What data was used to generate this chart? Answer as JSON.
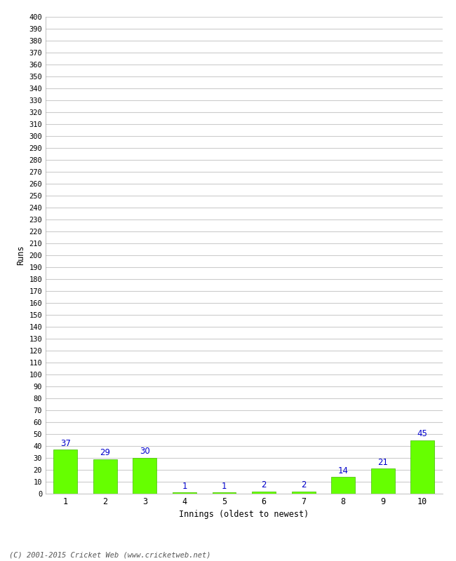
{
  "categories": [
    "1",
    "2",
    "3",
    "4",
    "5",
    "6",
    "7",
    "8",
    "9",
    "10"
  ],
  "values": [
    37,
    29,
    30,
    1,
    1,
    2,
    2,
    14,
    21,
    45
  ],
  "bar_color": "#66ff00",
  "bar_edge_color": "#44bb00",
  "label_color": "#0000cc",
  "xlabel": "Innings (oldest to newest)",
  "ylabel": "Runs",
  "ylim": [
    0,
    400
  ],
  "ytick_step": 10,
  "background_color": "#ffffff",
  "grid_color": "#cccccc",
  "footer": "(C) 2001-2015 Cricket Web (www.cricketweb.net)"
}
